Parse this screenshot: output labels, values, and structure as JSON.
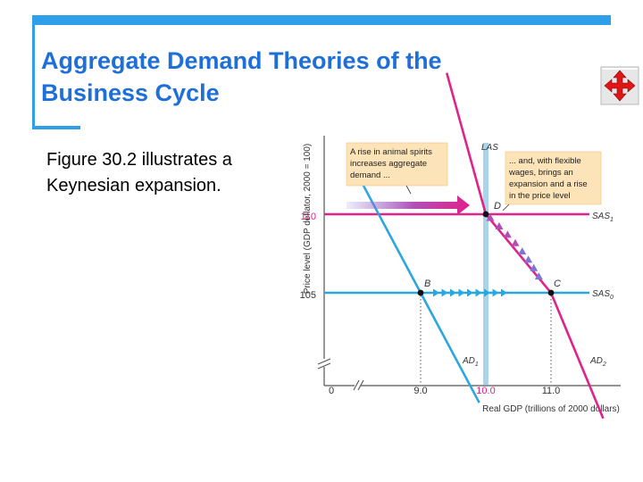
{
  "slide": {
    "title_line1": "Aggregate Demand Theories of the",
    "title_line2": "Business Cycle",
    "body": "Figure 30.2 illustrates a Keynesian expansion.",
    "nav_icon": "four-way-arrow-icon",
    "accent_color": "#2E9FE8",
    "title_color": "#1F6FD8"
  },
  "chart_data": {
    "type": "line",
    "xlabel": "Real GDP (trillions of 2000 dollars)",
    "ylabel": "Price level (GDP deflator, 2000 = 100)",
    "x_ticks": [
      {
        "value": 9.0,
        "label": "9.0"
      },
      {
        "value": 10.0,
        "label": "10.0"
      },
      {
        "value": 11.0,
        "label": "11.0"
      }
    ],
    "y_ticks": [
      {
        "value": 105,
        "label": "105"
      },
      {
        "value": 110,
        "label": "110"
      }
    ],
    "origin_label": "0",
    "curves": {
      "LAS": {
        "label": "LAS",
        "x": 10.0,
        "color": "#A9D4EC"
      },
      "SAS0": {
        "label": "SAS",
        "sub": "0",
        "y": 105,
        "color": "#2AA7DF"
      },
      "SAS1": {
        "label": "SAS",
        "sub": "1",
        "y": 110,
        "color": "#E0228B"
      },
      "AD1": {
        "label": "AD",
        "sub": "1",
        "color": "#2AA7DF",
        "points": [
          [
            8.1,
            112
          ],
          [
            9.0,
            105
          ],
          [
            9.9,
            98
          ]
        ]
      },
      "AD2": {
        "label": "AD",
        "sub": "2",
        "color": "#E0228B",
        "points": [
          [
            9.4,
            119
          ],
          [
            10.0,
            110
          ],
          [
            11.0,
            105
          ],
          [
            11.8,
            97
          ]
        ]
      }
    },
    "points": [
      {
        "label": "B",
        "x": 9.0,
        "y": 105
      },
      {
        "label": "C",
        "x": 11.0,
        "y": 105
      },
      {
        "label": "D",
        "x": 10.0,
        "y": 110
      }
    ],
    "annotations": [
      {
        "lines": [
          "A rise in animal spirits",
          "increases aggregate",
          "demand ..."
        ]
      },
      {
        "lines": [
          "... and, with flexible",
          "wages, brings an",
          "expansion and a rise",
          "in the price level"
        ]
      }
    ]
  }
}
